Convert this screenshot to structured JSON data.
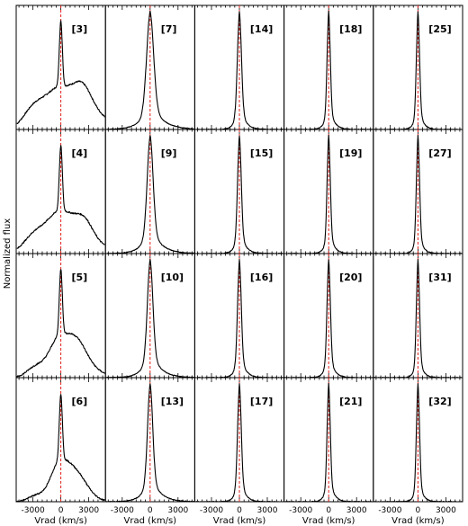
{
  "chart_data": {
    "type": "line",
    "layout": {
      "rows": 4,
      "cols": 5
    },
    "xlabel": "Vrad (km/s)",
    "ylabel": "Normalized flux",
    "xlim": [
      -4800,
      4800
    ],
    "ylim": [
      0,
      1.05
    ],
    "xticks": [
      -3000,
      0,
      3000
    ],
    "xtick_labels": [
      "-3000",
      "0",
      "3000"
    ],
    "reference_line": {
      "x": 0,
      "color": "#e0201b",
      "style": "dashed"
    },
    "panels": [
      {
        "label": "[3]",
        "row": 0,
        "col": 0,
        "kind": "broad",
        "widths": [
          1700,
          0.1,
          3000,
          0.15
        ],
        "bumps": [
          [
            -3000,
            0.14,
            1100
          ],
          [
            2400,
            0.13,
            900
          ]
        ]
      },
      {
        "label": "[7]",
        "row": 0,
        "col": 1,
        "kind": "mid",
        "widths": [
          380,
          1100
        ]
      },
      {
        "label": "[14]",
        "row": 0,
        "col": 2,
        "kind": "narrow",
        "widths": [
          220,
          480
        ]
      },
      {
        "label": "[18]",
        "row": 0,
        "col": 3,
        "kind": "narrow",
        "widths": [
          170,
          420
        ]
      },
      {
        "label": "[25]",
        "row": 0,
        "col": 4,
        "kind": "narrow",
        "widths": [
          170,
          380
        ]
      },
      {
        "label": "[4]",
        "row": 1,
        "col": 0,
        "kind": "broad",
        "widths": [
          1600,
          0.08,
          2600,
          0.12
        ],
        "bumps": [
          [
            -3000,
            0.12,
            1100
          ],
          [
            2600,
            0.09,
            800
          ]
        ]
      },
      {
        "label": "[9]",
        "row": 1,
        "col": 1,
        "kind": "mid",
        "widths": [
          320,
          950
        ]
      },
      {
        "label": "[15]",
        "row": 1,
        "col": 2,
        "kind": "narrow",
        "widths": [
          200,
          460
        ]
      },
      {
        "label": "[19]",
        "row": 1,
        "col": 3,
        "kind": "narrow",
        "widths": [
          170,
          400
        ]
      },
      {
        "label": "[27]",
        "row": 1,
        "col": 4,
        "kind": "narrow",
        "widths": [
          170,
          360
        ]
      },
      {
        "label": "[5]",
        "row": 2,
        "col": 0,
        "kind": "broad",
        "widths": [
          1200,
          0.06,
          2200,
          0.09
        ],
        "bumps": [
          [
            -2800,
            0.08,
            900
          ],
          [
            1900,
            0.08,
            900
          ]
        ]
      },
      {
        "label": "[10]",
        "row": 2,
        "col": 1,
        "kind": "mid",
        "widths": [
          300,
          900
        ]
      },
      {
        "label": "[16]",
        "row": 2,
        "col": 2,
        "kind": "narrow",
        "widths": [
          200,
          460
        ]
      },
      {
        "label": "[20]",
        "row": 2,
        "col": 3,
        "kind": "narrow",
        "widths": [
          180,
          420
        ]
      },
      {
        "label": "[31]",
        "row": 2,
        "col": 4,
        "kind": "narrow",
        "widths": [
          170,
          360
        ]
      },
      {
        "label": "[6]",
        "row": 3,
        "col": 0,
        "kind": "broad",
        "widths": [
          1000,
          0.04,
          1800,
          0.07
        ],
        "bumps": [
          [
            -2600,
            0.05,
            900
          ],
          [
            2200,
            0.05,
            900
          ]
        ]
      },
      {
        "label": "[13]",
        "row": 3,
        "col": 1,
        "kind": "mid",
        "widths": [
          280,
          850
        ]
      },
      {
        "label": "[17]",
        "row": 3,
        "col": 2,
        "kind": "narrow",
        "widths": [
          200,
          440
        ]
      },
      {
        "label": "[21]",
        "row": 3,
        "col": 3,
        "kind": "narrow",
        "widths": [
          170,
          400
        ]
      },
      {
        "label": "[32]",
        "row": 3,
        "col": 4,
        "kind": "narrow",
        "widths": [
          170,
          360
        ]
      }
    ]
  }
}
